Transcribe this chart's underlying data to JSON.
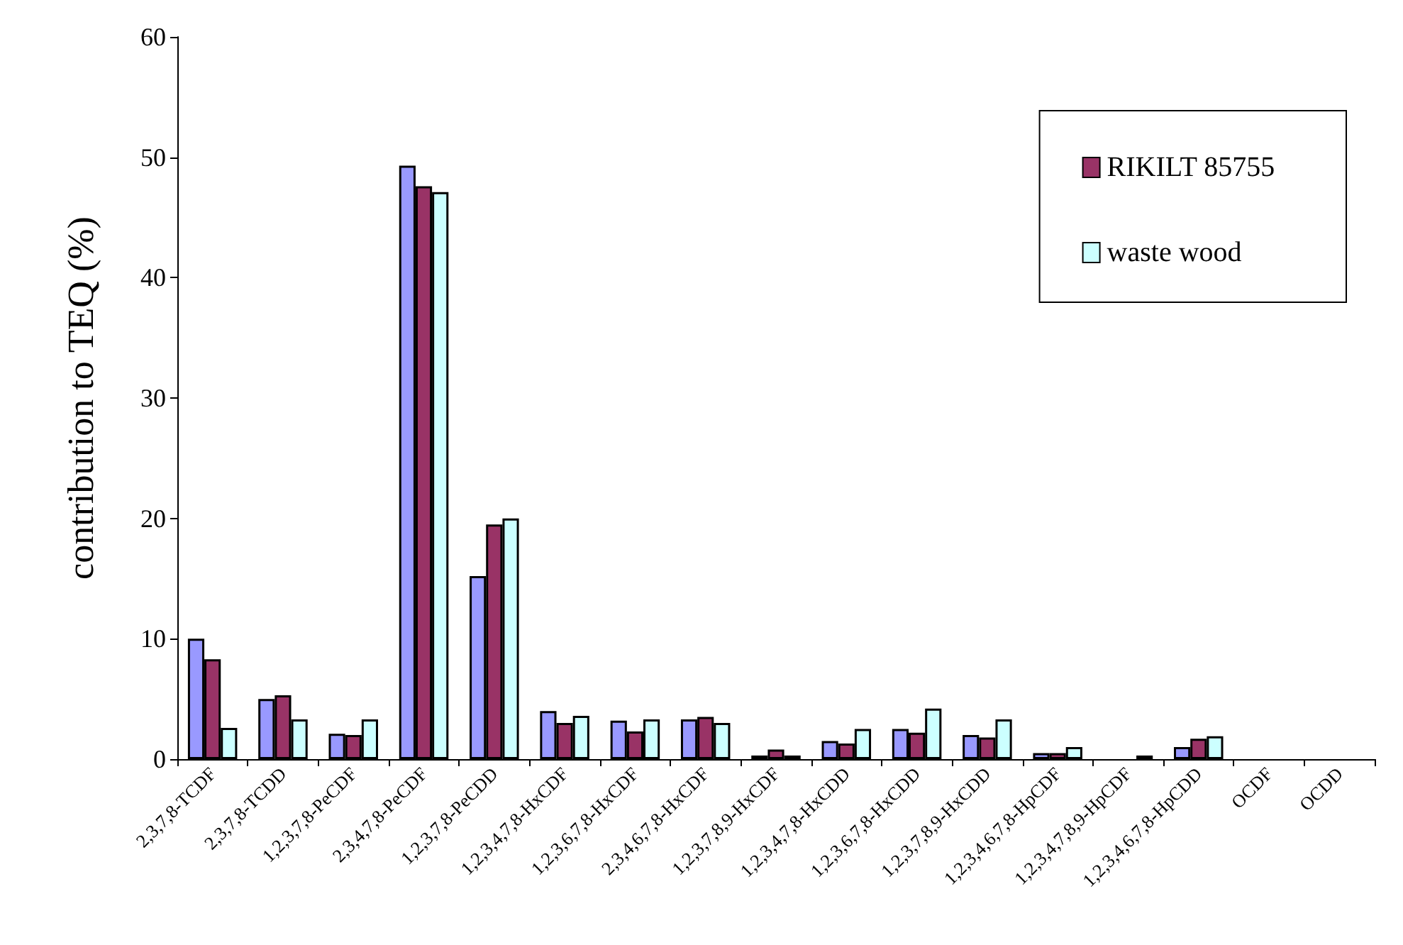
{
  "chart_data": {
    "type": "bar",
    "ylabel": "contribution to TEQ (%)",
    "categories": [
      "2,3,7,8-TCDF",
      "2,3,7,8-TCDD",
      "1,2,3,7,8-PeCDF",
      "2,3,4,7,8-PeCDF",
      "1,2,3,7,8-PeCDD",
      "1,2,3,4,7,8-HxCDF",
      "1,2,3,6,7,8-HxCDF",
      "2,3,4,6,7,8-HxCDF",
      "1,2,3,7,8,9-HxCDF",
      "1,2,3,4,7,8-HxCDD",
      "1,2,3,6,7,8-HxCDD",
      "1,2,3,7,8,9-HxCDD",
      "1,2,3,4,6,7,8-HpCDF",
      "1,2,3,4,7,8,9-HpCDF",
      "1,2,3,4,6,7,8-HpCDD",
      "OCDF",
      "OCDD"
    ],
    "series": [
      {
        "color": "#9999ff",
        "values": [
          10.0,
          5.0,
          2.1,
          49.3,
          15.2,
          4.0,
          3.2,
          3.3,
          0.3,
          1.5,
          2.5,
          2.0,
          0.5,
          0,
          1.0,
          0,
          0
        ]
      },
      {
        "name": "RIKILT 85755",
        "color": "#993366",
        "values": [
          8.3,
          5.3,
          2.0,
          47.6,
          19.5,
          3.0,
          2.3,
          3.5,
          0.8,
          1.3,
          2.2,
          1.8,
          0.5,
          0,
          1.7,
          0,
          0
        ]
      },
      {
        "name": "waste wood",
        "color": "#ccffff",
        "values": [
          2.6,
          3.3,
          3.3,
          47.1,
          20.0,
          3.6,
          3.3,
          3.0,
          0.3,
          2.5,
          4.2,
          3.3,
          1.0,
          0.3,
          1.9,
          0,
          0
        ]
      }
    ],
    "ylim": [
      0,
      60
    ],
    "yticks": [
      0,
      10,
      20,
      30,
      40,
      50,
      60
    ],
    "grid": false,
    "legend": "top right"
  }
}
